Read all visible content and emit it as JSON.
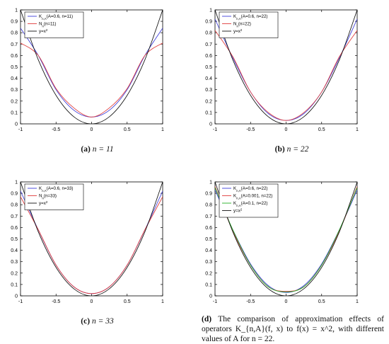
{
  "panels": [
    {
      "caption_letter": "(a)",
      "caption_text": "n = 11",
      "chart_data": {
        "type": "line",
        "xlim": [
          -1,
          1
        ],
        "ylim": [
          0,
          1
        ],
        "xticks": [
          "-1",
          "-0.5",
          "0",
          "0.5",
          "1"
        ],
        "yticks": [
          "0",
          "0.1",
          "0.2",
          "0.3",
          "0.4",
          "0.5",
          "0.6",
          "0.7",
          "0.8",
          "0.9",
          "1"
        ],
        "grid": false,
        "legend_position": "top-left",
        "series": [
          {
            "name": "K_{n,A}(A=0.6, n=11)",
            "color": "#3b3bd8",
            "x": [
              -1,
              -0.75,
              -0.5,
              -0.25,
              0,
              0.25,
              0.5,
              0.75,
              1
            ],
            "y": [
              0.84,
              0.6,
              0.3,
              0.12,
              0.06,
              0.12,
              0.3,
              0.6,
              0.84
            ]
          },
          {
            "name": "N_n(n=11)",
            "color": "#e03c3c",
            "x": [
              -1,
              -0.75,
              -0.5,
              -0.25,
              0,
              0.25,
              0.5,
              0.75,
              1
            ],
            "y": [
              0.71,
              0.6,
              0.31,
              0.14,
              0.06,
              0.14,
              0.31,
              0.6,
              0.71
            ]
          },
          {
            "name": "y=x^2",
            "color": "#111111",
            "x": [
              -1,
              -0.75,
              -0.5,
              -0.25,
              0,
              0.25,
              0.5,
              0.75,
              1
            ],
            "y": [
              1,
              0.5625,
              0.25,
              0.0625,
              0,
              0.0625,
              0.25,
              0.5625,
              1
            ]
          }
        ]
      }
    },
    {
      "caption_letter": "(b)",
      "caption_text": "n = 22",
      "chart_data": {
        "type": "line",
        "xlim": [
          -1,
          1
        ],
        "ylim": [
          0,
          1
        ],
        "xticks": [
          "-1",
          "-0.5",
          "0",
          "0.5",
          "1"
        ],
        "yticks": [
          "0",
          "0.1",
          "0.2",
          "0.3",
          "0.4",
          "0.5",
          "0.6",
          "0.7",
          "0.8",
          "0.9",
          "1"
        ],
        "grid": false,
        "legend_position": "top-left",
        "series": [
          {
            "name": "K_{n,A}(A=0.6, n=22)",
            "color": "#3b3bd8",
            "x": [
              -1,
              -0.75,
              -0.5,
              -0.25,
              0,
              0.25,
              0.5,
              0.75,
              1
            ],
            "y": [
              0.92,
              0.58,
              0.28,
              0.09,
              0.03,
              0.09,
              0.28,
              0.58,
              0.92
            ]
          },
          {
            "name": "N_n(n=22)",
            "color": "#e03c3c",
            "x": [
              -1,
              -0.75,
              -0.5,
              -0.25,
              0,
              0.25,
              0.5,
              0.75,
              1
            ],
            "y": [
              0.82,
              0.59,
              0.28,
              0.1,
              0.03,
              0.1,
              0.28,
              0.59,
              0.82
            ]
          },
          {
            "name": "y=x^2",
            "color": "#111111",
            "x": [
              -1,
              -0.75,
              -0.5,
              -0.25,
              0,
              0.25,
              0.5,
              0.75,
              1
            ],
            "y": [
              1,
              0.5625,
              0.25,
              0.0625,
              0,
              0.0625,
              0.25,
              0.5625,
              1
            ]
          }
        ]
      }
    },
    {
      "caption_letter": "(c)",
      "caption_text": "n = 33",
      "chart_data": {
        "type": "line",
        "xlim": [
          -1,
          1
        ],
        "ylim": [
          0,
          1
        ],
        "xticks": [
          "-1",
          "-0.5",
          "0",
          "0.5",
          "1"
        ],
        "yticks": [
          "0",
          "0.1",
          "0.2",
          "0.3",
          "0.4",
          "0.5",
          "0.6",
          "0.7",
          "0.8",
          "0.9",
          "1"
        ],
        "grid": false,
        "legend_position": "top-left",
        "series": [
          {
            "name": "K_{n,A}(A=0.6, n=33)",
            "color": "#3b3bd8",
            "x": [
              -1,
              -0.75,
              -0.5,
              -0.25,
              0,
              0.25,
              0.5,
              0.75,
              1
            ],
            "y": [
              0.92,
              0.58,
              0.27,
              0.08,
              0.02,
              0.08,
              0.27,
              0.58,
              0.92
            ]
          },
          {
            "name": "N_n(n=33)",
            "color": "#e03c3c",
            "x": [
              -1,
              -0.75,
              -0.5,
              -0.25,
              0,
              0.25,
              0.5,
              0.75,
              1
            ],
            "y": [
              0.87,
              0.58,
              0.27,
              0.08,
              0.02,
              0.08,
              0.27,
              0.58,
              0.87
            ]
          },
          {
            "name": "y=x^2",
            "color": "#111111",
            "x": [
              -1,
              -0.75,
              -0.5,
              -0.25,
              0,
              0.25,
              0.5,
              0.75,
              1
            ],
            "y": [
              1,
              0.5625,
              0.25,
              0.0625,
              0,
              0.0625,
              0.25,
              0.5625,
              1
            ]
          }
        ]
      }
    },
    {
      "caption_letter": "(d)",
      "caption_text": "The comparison of approximation effects of operators K_{n,A}(f, x) to f(x) = x^2, with different values of A for n = 22.",
      "chart_data": {
        "type": "line",
        "xlim": [
          -1,
          1
        ],
        "ylim": [
          0,
          1
        ],
        "xticks": [
          "-1",
          "-0.5",
          "0",
          "0.5",
          "1"
        ],
        "yticks": [
          "0",
          "0.1",
          "0.2",
          "0.3",
          "0.4",
          "0.5",
          "0.6",
          "0.7",
          "0.8",
          "0.9",
          "1"
        ],
        "grid": false,
        "legend_position": "top-left",
        "series": [
          {
            "name": "K_{n,A}(A=0.6, n=22)",
            "color": "#3b3bd8",
            "x": [
              -1,
              -0.75,
              -0.5,
              -0.25,
              0,
              0.25,
              0.5,
              0.75,
              1
            ],
            "y": [
              0.93,
              0.58,
              0.28,
              0.09,
              0.03,
              0.09,
              0.28,
              0.58,
              0.93
            ]
          },
          {
            "name": "K_{n,A}(A=0.001, n=22)",
            "color": "#e03c3c",
            "x": [
              -1,
              -0.75,
              -0.5,
              -0.25,
              0,
              0.25,
              0.5,
              0.75,
              1
            ],
            "y": [
              0.96,
              0.57,
              0.27,
              0.08,
              0.04,
              0.08,
              0.27,
              0.57,
              0.96
            ]
          },
          {
            "name": "K_{n,A}(A=0.1, n=22)",
            "color": "#22b022",
            "x": [
              -1,
              -0.75,
              -0.5,
              -0.25,
              0,
              0.25,
              0.5,
              0.75,
              1
            ],
            "y": [
              0.95,
              0.58,
              0.27,
              0.08,
              0.035,
              0.08,
              0.27,
              0.58,
              0.95
            ]
          },
          {
            "name": "y=x^2",
            "color": "#111111",
            "x": [
              -1,
              -0.75,
              -0.5,
              -0.25,
              0,
              0.25,
              0.5,
              0.75,
              1
            ],
            "y": [
              1,
              0.5625,
              0.25,
              0.0625,
              0,
              0.0625,
              0.25,
              0.5625,
              1
            ]
          }
        ]
      }
    }
  ]
}
